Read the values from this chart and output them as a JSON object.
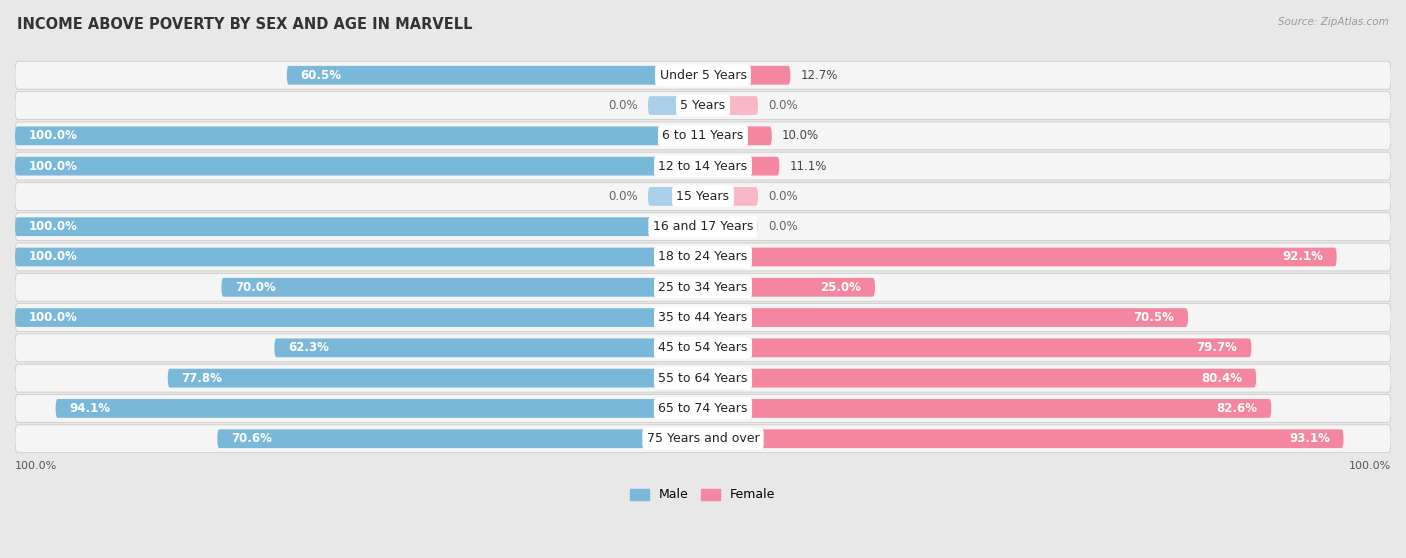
{
  "title": "INCOME ABOVE POVERTY BY SEX AND AGE IN MARVELL",
  "source": "Source: ZipAtlas.com",
  "categories": [
    "Under 5 Years",
    "5 Years",
    "6 to 11 Years",
    "12 to 14 Years",
    "15 Years",
    "16 and 17 Years",
    "18 to 24 Years",
    "25 to 34 Years",
    "35 to 44 Years",
    "45 to 54 Years",
    "55 to 64 Years",
    "65 to 74 Years",
    "75 Years and over"
  ],
  "male": [
    60.5,
    0.0,
    100.0,
    100.0,
    0.0,
    100.0,
    100.0,
    70.0,
    100.0,
    62.3,
    77.8,
    94.1,
    70.6
  ],
  "female": [
    12.7,
    0.0,
    10.0,
    11.1,
    0.0,
    0.0,
    92.1,
    25.0,
    70.5,
    79.7,
    80.4,
    82.6,
    93.1
  ],
  "male_color": "#7ab8d9",
  "female_color": "#f4879f",
  "male_color_light": "#aacfe8",
  "female_color_light": "#f9b8c7",
  "male_label": "Male",
  "female_label": "Female",
  "background_color": "#e8e8e8",
  "row_bg_color": "#f5f5f5",
  "row_bg_alt": "#ebebeb",
  "title_fontsize": 10.5,
  "label_fontsize": 9,
  "value_fontsize": 8.5,
  "max_value": 100.0
}
